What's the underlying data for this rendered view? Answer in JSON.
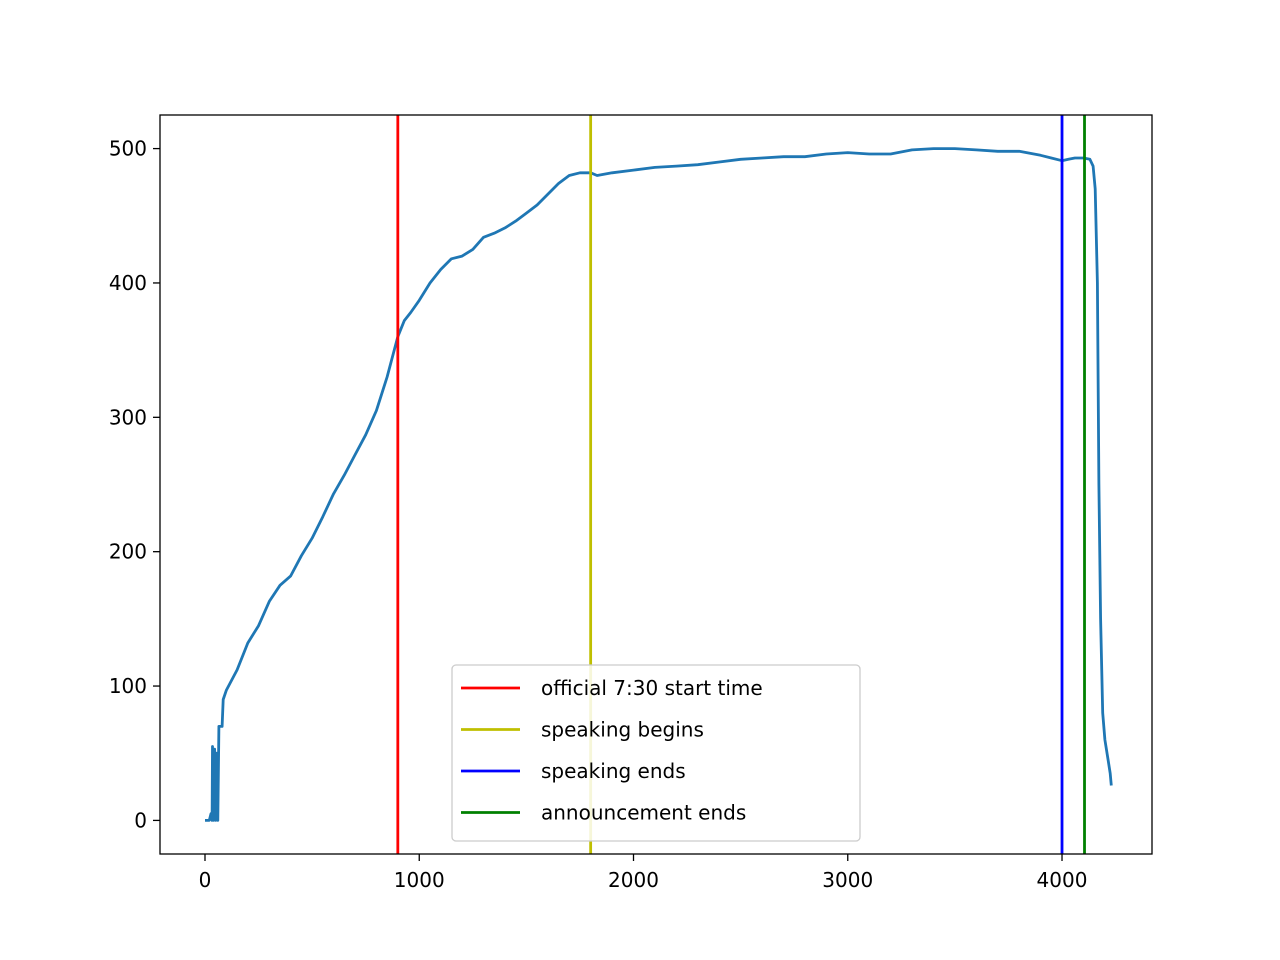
{
  "chart_data": {
    "type": "line",
    "title": "",
    "xlabel": "",
    "ylabel": "",
    "xlim": [
      -210,
      4420
    ],
    "ylim": [
      -25,
      525
    ],
    "x_ticks": [
      0,
      1000,
      2000,
      3000,
      4000
    ],
    "y_ticks": [
      0,
      100,
      200,
      300,
      400,
      500
    ],
    "grid": false,
    "legend_position": "lower-center",
    "series": [
      {
        "color": "#1f77b4",
        "points": [
          [
            0,
            0
          ],
          [
            20,
            0
          ],
          [
            28,
            5
          ],
          [
            33,
            0
          ],
          [
            35,
            55
          ],
          [
            40,
            0
          ],
          [
            45,
            53
          ],
          [
            50,
            0
          ],
          [
            55,
            50
          ],
          [
            60,
            0
          ],
          [
            65,
            70
          ],
          [
            80,
            70
          ],
          [
            85,
            90
          ],
          [
            100,
            97
          ],
          [
            150,
            112
          ],
          [
            200,
            132
          ],
          [
            250,
            145
          ],
          [
            300,
            163
          ],
          [
            350,
            175
          ],
          [
            400,
            182
          ],
          [
            450,
            197
          ],
          [
            500,
            210
          ],
          [
            550,
            226
          ],
          [
            600,
            243
          ],
          [
            650,
            257
          ],
          [
            700,
            272
          ],
          [
            750,
            287
          ],
          [
            800,
            305
          ],
          [
            850,
            330
          ],
          [
            900,
            360
          ],
          [
            930,
            372
          ],
          [
            960,
            378
          ],
          [
            1000,
            387
          ],
          [
            1050,
            400
          ],
          [
            1100,
            410
          ],
          [
            1150,
            418
          ],
          [
            1200,
            420
          ],
          [
            1250,
            425
          ],
          [
            1300,
            434
          ],
          [
            1350,
            437
          ],
          [
            1400,
            441
          ],
          [
            1450,
            446
          ],
          [
            1500,
            452
          ],
          [
            1550,
            458
          ],
          [
            1600,
            466
          ],
          [
            1650,
            474
          ],
          [
            1700,
            480
          ],
          [
            1750,
            482
          ],
          [
            1800,
            482
          ],
          [
            1830,
            480
          ],
          [
            1900,
            482
          ],
          [
            2000,
            484
          ],
          [
            2100,
            486
          ],
          [
            2200,
            487
          ],
          [
            2300,
            488
          ],
          [
            2400,
            490
          ],
          [
            2500,
            492
          ],
          [
            2600,
            493
          ],
          [
            2700,
            494
          ],
          [
            2800,
            494
          ],
          [
            2900,
            496
          ],
          [
            3000,
            497
          ],
          [
            3100,
            496
          ],
          [
            3200,
            496
          ],
          [
            3300,
            499
          ],
          [
            3400,
            500
          ],
          [
            3500,
            500
          ],
          [
            3600,
            499
          ],
          [
            3700,
            498
          ],
          [
            3800,
            498
          ],
          [
            3900,
            495
          ],
          [
            3950,
            493
          ],
          [
            4000,
            491
          ],
          [
            4030,
            492
          ],
          [
            4060,
            493
          ],
          [
            4100,
            493
          ],
          [
            4130,
            492
          ],
          [
            4145,
            487
          ],
          [
            4155,
            470
          ],
          [
            4165,
            400
          ],
          [
            4172,
            250
          ],
          [
            4180,
            150
          ],
          [
            4190,
            80
          ],
          [
            4200,
            60
          ],
          [
            4215,
            45
          ],
          [
            4225,
            35
          ],
          [
            4230,
            26
          ]
        ]
      }
    ],
    "vlines": [
      {
        "x": 900,
        "color": "#ff0000",
        "label": "official 7:30 start time"
      },
      {
        "x": 1800,
        "color": "#bfbf00",
        "label": "speaking begins"
      },
      {
        "x": 4000,
        "color": "#0000ff",
        "label": "speaking ends"
      },
      {
        "x": 4105,
        "color": "#008000",
        "label": "announcement ends"
      }
    ]
  }
}
